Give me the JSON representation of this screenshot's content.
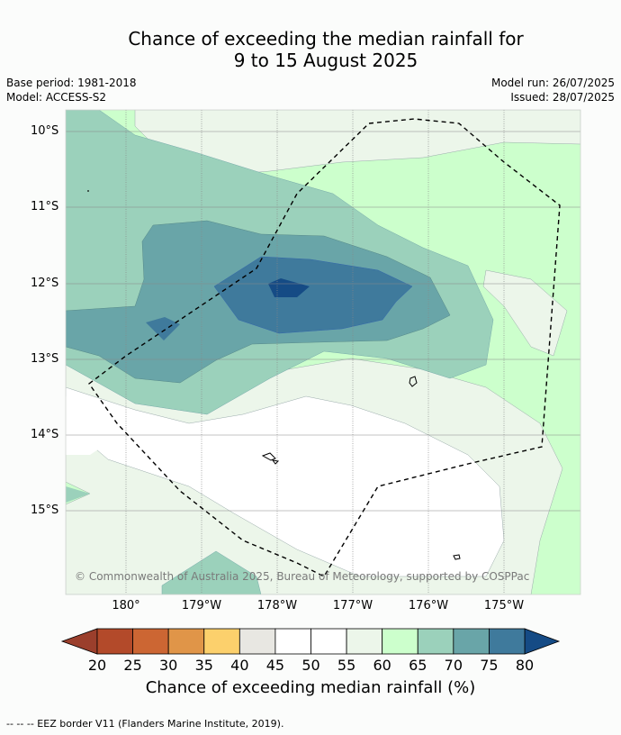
{
  "title": {
    "line1": "Chance of exceeding the median rainfall for",
    "line2": "9 to 15 August 2025"
  },
  "info": {
    "base_period": "Base period: 1981-2018",
    "model": "Model: ACCESS-S2",
    "model_run": "Model run: 26/07/2025",
    "issued": "Issued: 28/07/2025"
  },
  "map": {
    "lat_labels": [
      "10°S",
      "11°S",
      "12°S",
      "13°S",
      "14°S",
      "15°S"
    ],
    "lon_labels": [
      "180°",
      "179°W",
      "178°W",
      "177°W",
      "176°W",
      "175°W"
    ],
    "copyright": "© Commonwealth of Australia 2025, Bureau of Meteorology, supported by COSPPac"
  },
  "colorbar": {
    "ticks": [
      "20",
      "25",
      "30",
      "35",
      "40",
      "45",
      "50",
      "55",
      "60",
      "65",
      "70",
      "75",
      "80"
    ],
    "colors": [
      "#b34a2a",
      "#cc6633",
      "#e09548",
      "#fcd06c",
      "#e8e7e2",
      "#ffffff",
      "#ffffff",
      "#ecf6ea",
      "#ccffcc",
      "#9bd1bb",
      "#69a5a8",
      "#3f7a9c"
    ],
    "under_color": "#9b3f2c",
    "over_color": "#154b85",
    "label": "Chance of exceeding median rainfall (%)"
  },
  "footnote": "--  --  -- EEZ border V11 (Flanders Marine Institute, 2019)."
}
